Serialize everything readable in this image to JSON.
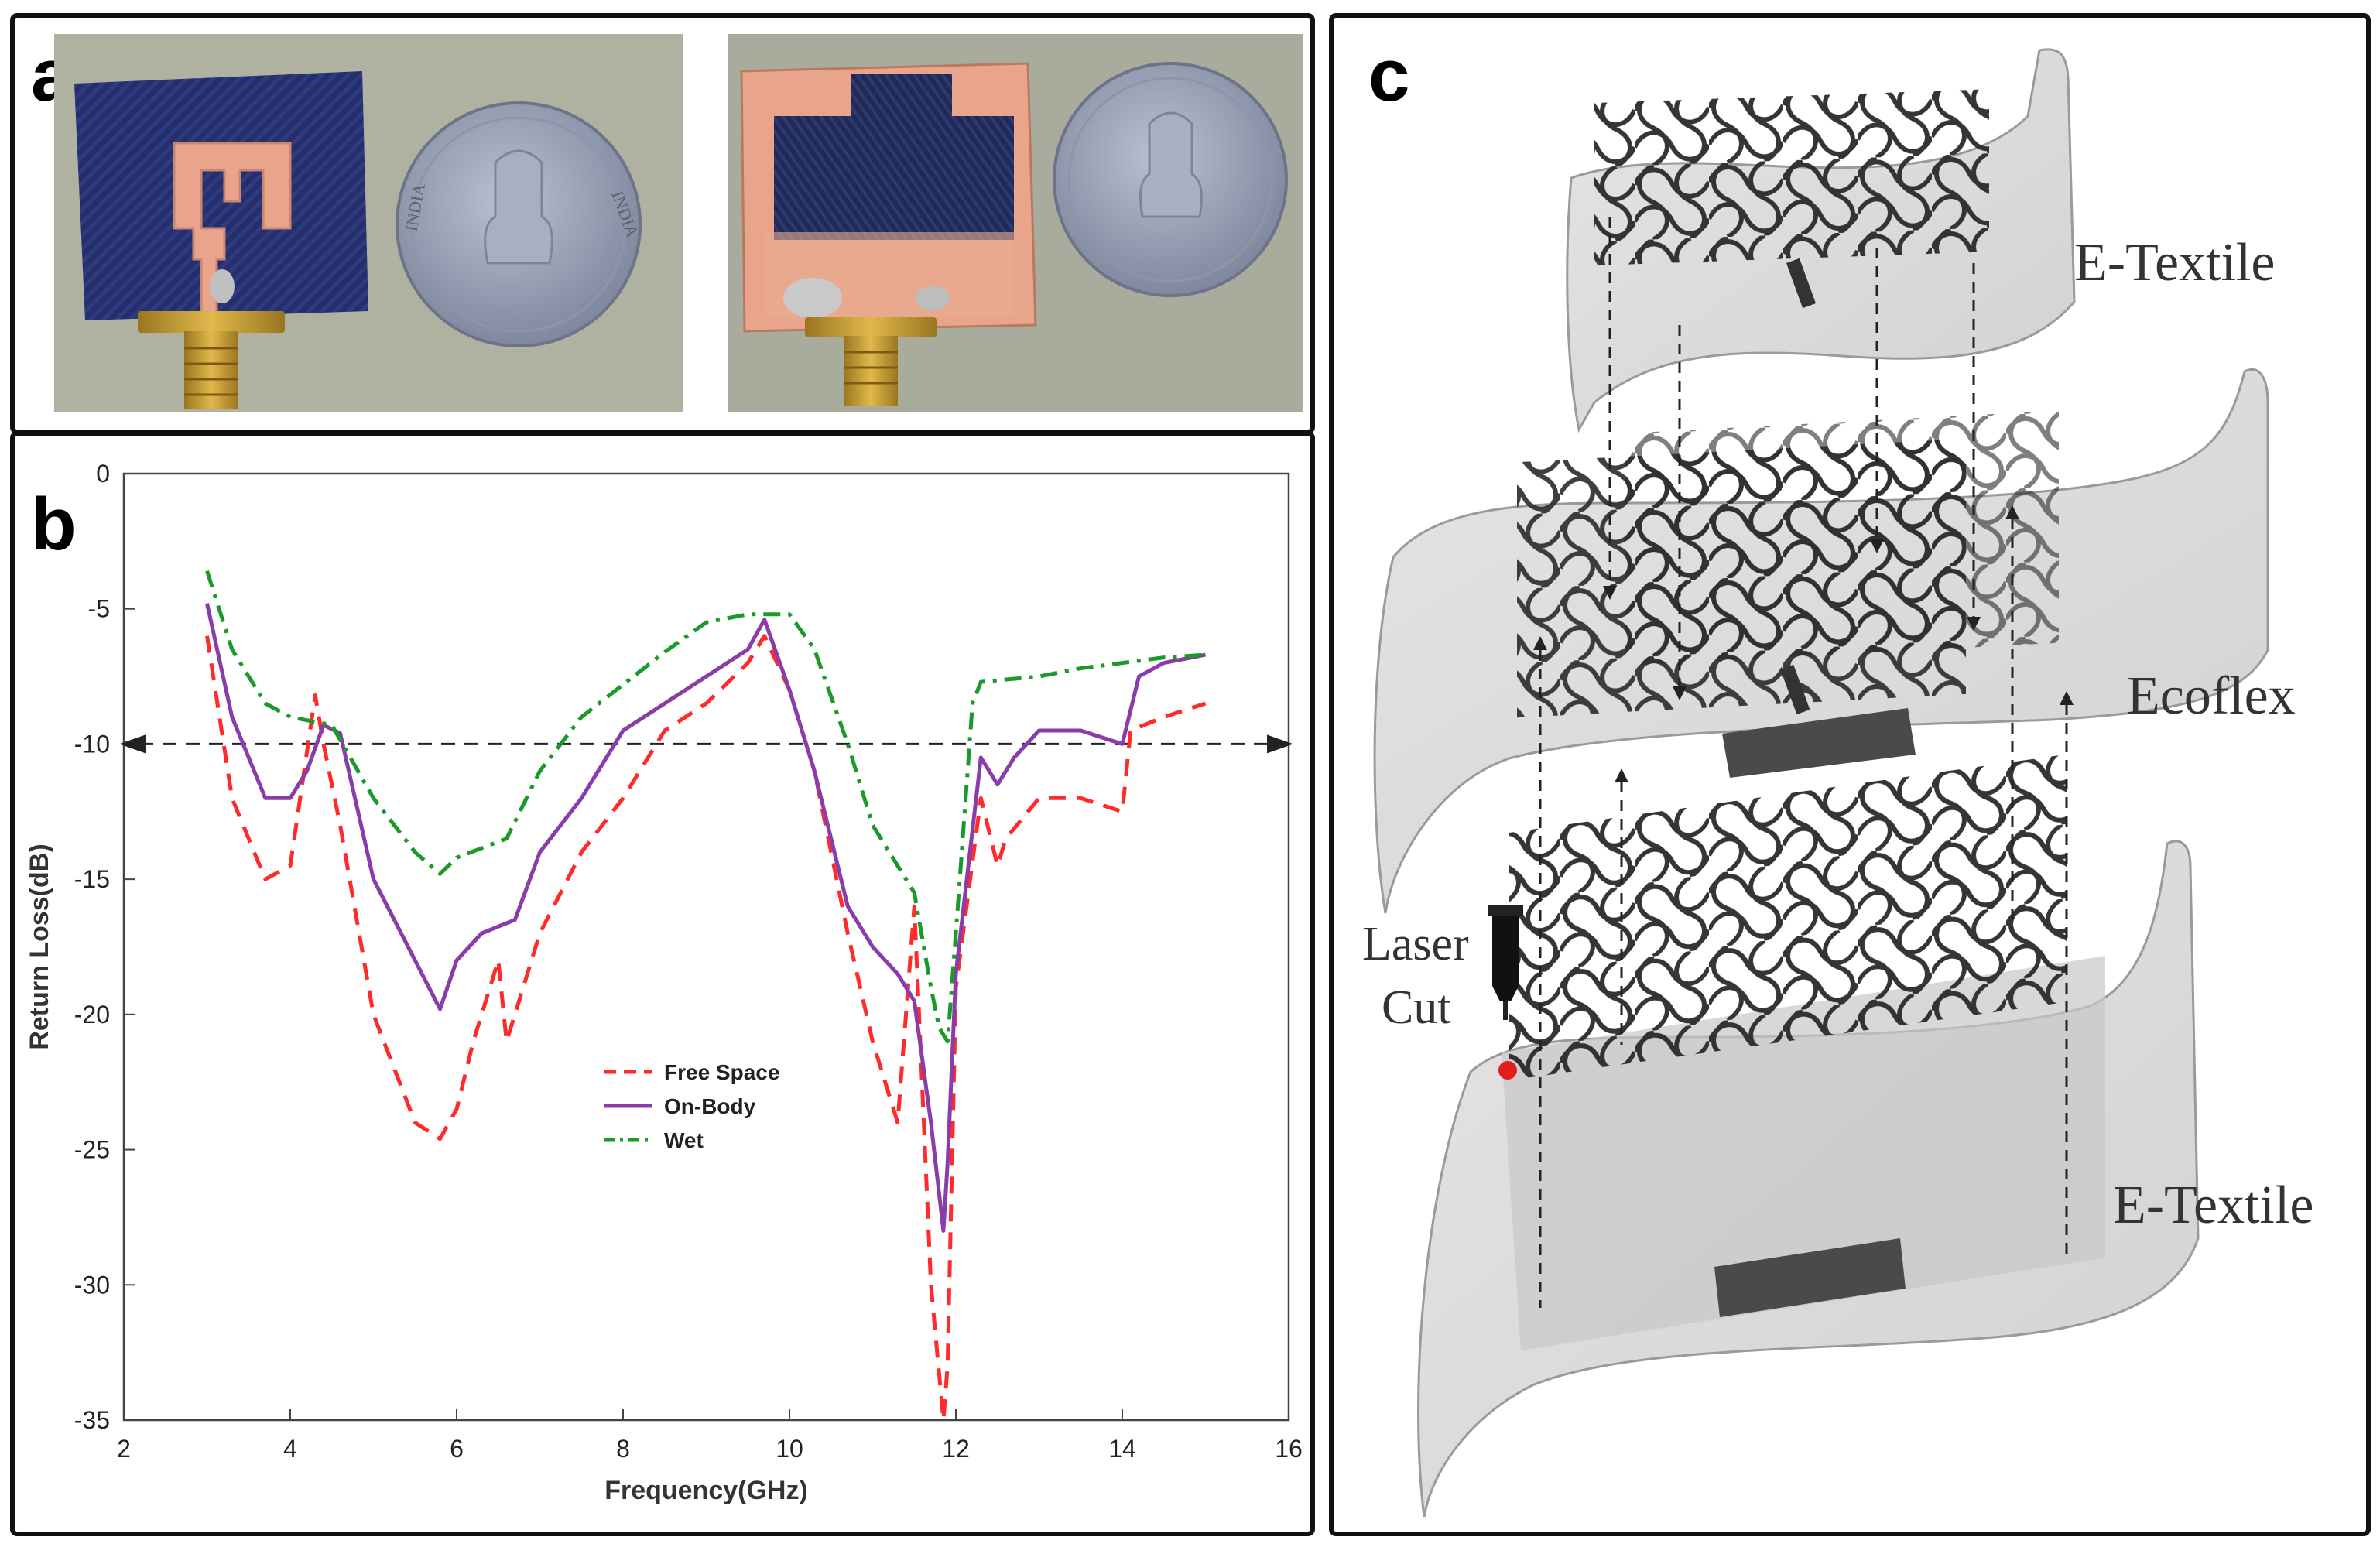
{
  "panels": {
    "a": {
      "label": "a",
      "coin_text_left": "INDIA",
      "coin_text_right": "INDIA"
    },
    "b": {
      "label": "b"
    },
    "c": {
      "label": "c"
    }
  },
  "colors": {
    "free_space": "#ff2a2a",
    "on_body": "#8a3ca8",
    "wet": "#1a9a2a",
    "denim": "#262f6e",
    "copper": "#e8a58c",
    "coin": "#9aa3b8"
  },
  "chart_data": {
    "type": "line",
    "xlabel": "Frequency(GHz)",
    "ylabel": "Return Loss(dB)",
    "xlim": [
      2,
      16
    ],
    "ylim": [
      -35,
      0
    ],
    "xticks": [
      2,
      4,
      6,
      8,
      10,
      12,
      14,
      16
    ],
    "yticks": [
      0,
      -5,
      -10,
      -15,
      -20,
      -25,
      -30,
      -35
    ],
    "threshold": -10,
    "legend": {
      "placement": "center",
      "entries": [
        "Free Space",
        "On-Body",
        "Wet"
      ]
    },
    "series": [
      {
        "name": "Free Space",
        "style": "dashed",
        "x": [
          3.0,
          3.3,
          3.7,
          4.0,
          4.3,
          4.4,
          4.6,
          5.0,
          5.5,
          5.8,
          6.0,
          6.2,
          6.5,
          6.6,
          7.0,
          7.5,
          8.0,
          8.5,
          9.0,
          9.5,
          9.7,
          10.0,
          10.3,
          10.7,
          11.0,
          11.3,
          11.5,
          11.7,
          11.85,
          11.9,
          12.0,
          12.3,
          12.5,
          12.6,
          13.0,
          13.5,
          14.0,
          14.1,
          14.5,
          15.0
        ],
        "y": [
          -6,
          -12,
          -15,
          -14.5,
          -8.2,
          -10,
          -13,
          -20,
          -24,
          -24.6,
          -23.5,
          -21,
          -18,
          -21,
          -17,
          -14,
          -12,
          -9.5,
          -8.5,
          -7,
          -6,
          -8,
          -11,
          -17,
          -21,
          -24,
          -16,
          -30,
          -35,
          -33,
          -19,
          -12,
          -14.5,
          -13.5,
          -12,
          -12,
          -12.5,
          -9.5,
          -9,
          -8.5
        ]
      },
      {
        "name": "On-Body",
        "style": "solid",
        "x": [
          3.0,
          3.3,
          3.7,
          4.0,
          4.2,
          4.4,
          4.6,
          5.0,
          5.5,
          5.8,
          6.0,
          6.3,
          6.7,
          7.0,
          7.5,
          8.0,
          8.5,
          9.0,
          9.5,
          9.7,
          10.0,
          10.3,
          10.7,
          11.0,
          11.3,
          11.5,
          11.7,
          11.85,
          11.9,
          12.0,
          12.3,
          12.5,
          12.7,
          13.0,
          13.5,
          14.0,
          14.2,
          14.5,
          15.0
        ],
        "y": [
          -4.8,
          -9,
          -12,
          -12,
          -11,
          -9.3,
          -9.6,
          -15,
          -18,
          -19.8,
          -18,
          -17,
          -16.5,
          -14,
          -12,
          -9.5,
          -8.5,
          -7.5,
          -6.5,
          -5.4,
          -8,
          -11,
          -16,
          -17.5,
          -18.5,
          -19.5,
          -24,
          -28,
          -25.5,
          -18.5,
          -10.5,
          -11.5,
          -10.5,
          -9.5,
          -9.5,
          -10,
          -7.5,
          -7,
          -6.7
        ]
      },
      {
        "name": "Wet",
        "style": "dashdot",
        "x": [
          3.0,
          3.3,
          3.7,
          4.0,
          4.5,
          5.0,
          5.5,
          5.8,
          6.0,
          6.6,
          7.0,
          7.5,
          8.0,
          8.5,
          9.0,
          9.5,
          10.0,
          10.3,
          10.7,
          11.0,
          11.3,
          11.5,
          11.7,
          11.8,
          11.9,
          12.0,
          12.2,
          12.3,
          13.0,
          13.5,
          14.0,
          14.5,
          15.0
        ],
        "y": [
          -3.6,
          -6.5,
          -8.5,
          -9,
          -9.3,
          -12,
          -14,
          -14.8,
          -14.2,
          -13.5,
          -11,
          -9,
          -7.8,
          -6.6,
          -5.5,
          -5.2,
          -5.2,
          -6.5,
          -10,
          -13,
          -14.5,
          -15.5,
          -19,
          -20.5,
          -21,
          -17,
          -8.5,
          -7.7,
          -7.5,
          -7.2,
          -7,
          -6.8,
          -6.7
        ]
      }
    ]
  },
  "diagram": {
    "layers": [
      "E-Textile",
      "Ecoflex",
      "E-Textile"
    ],
    "tool_label_line1": "Laser",
    "tool_label_line2": "Cut"
  }
}
